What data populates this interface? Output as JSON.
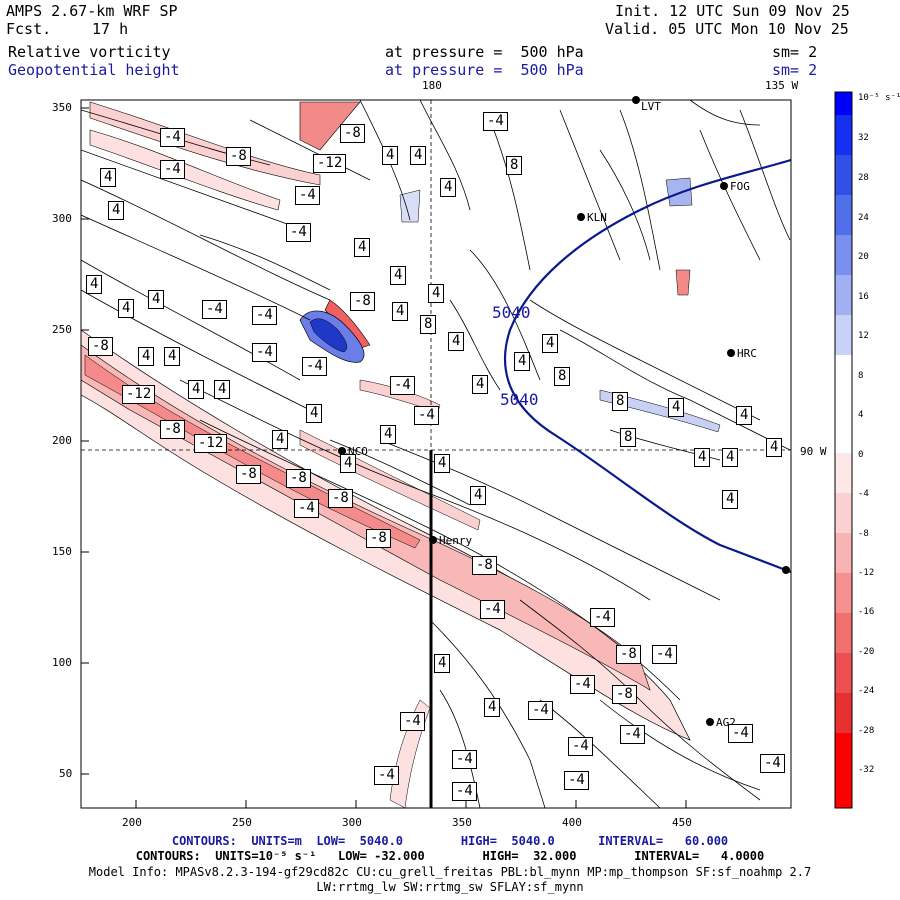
{
  "header": {
    "model": "AMPS 2.67-km WRF SP",
    "fcst_label": "Fcst.",
    "fcst_value": "17 h",
    "init": "Init. 12 UTC Sun 09 Nov 25",
    "valid": "Valid. 05 UTC Mon 10 Nov 25",
    "field1": "Relative vorticity",
    "field1_pressure": "at pressure =  500 hPa",
    "field1_sm": "sm= 2",
    "field2": "Geopotential height",
    "field2_pressure": "at pressure =  500 hPa",
    "field2_sm": "sm= 2"
  },
  "map": {
    "ref_lon_top": "180",
    "ref_lon_right": "135 W",
    "ref_lat_right": "90 W",
    "x_ticks": [
      "200",
      "250",
      "300",
      "350",
      "400",
      "450"
    ],
    "y_ticks": [
      "350",
      "300",
      "250",
      "200",
      "150",
      "100",
      "50"
    ],
    "stations": [
      {
        "name": "KLN"
      },
      {
        "name": "LVT"
      },
      {
        "name": "FOG"
      },
      {
        "name": "HRC"
      },
      {
        "name": "NCO"
      },
      {
        "name": "Henry"
      },
      {
        "name": "AG2"
      }
    ],
    "height_labels": [
      "5040",
      "5040"
    ],
    "vort_labels": [
      "-4",
      "-8",
      "-12",
      "4",
      "8"
    ],
    "colors": {
      "neg": "#e83030",
      "pos": "#2040d8",
      "height": "#0a1a8c"
    }
  },
  "colorbar": {
    "unit": "10⁻⁵ s⁻¹",
    "labels": [
      "32",
      "28",
      "24",
      "20",
      "16",
      "12",
      "8",
      "4",
      "0",
      "-4",
      "-8",
      "-12",
      "-16",
      "-20",
      "-24",
      "-28",
      "-32"
    ]
  },
  "footer": {
    "line1": "CONTOURS:  UNITS=m  LOW=  5040.0        HIGH=  5040.0      INTERVAL=   60.000",
    "line2": "CONTOURS:  UNITS=10⁻⁵ s⁻¹   LOW= -32.000        HIGH=  32.000        INTERVAL=   4.0000",
    "line3": "Model Info: MPASv8.2.3-194-gf29cd82c CU:cu_grell_freitas PBL:bl_mynn MP:mp_thompson SF:sf_noahmp 2.7",
    "line4": "LW:rrtmg_lw SW:rrtmg_sw SFLAY:sf_mynn"
  }
}
